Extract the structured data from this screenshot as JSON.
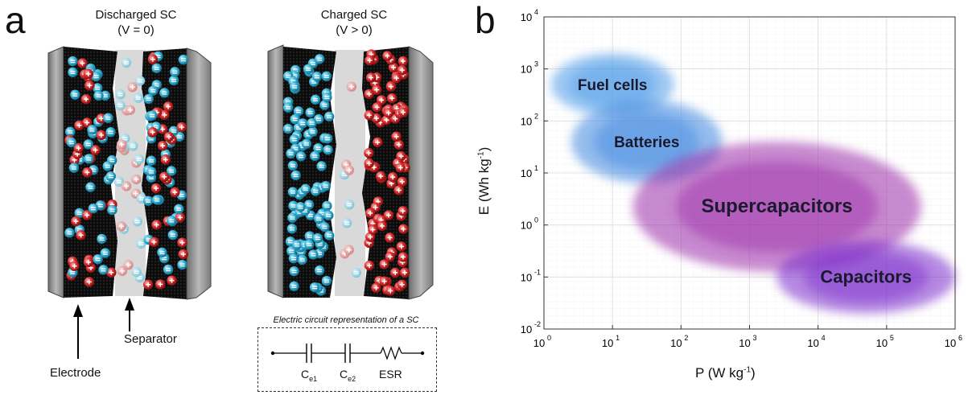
{
  "panel_a": {
    "letter": "a",
    "discharged": {
      "title_line1": "Discharged SC",
      "title_line2": "(V = 0)"
    },
    "charged": {
      "title_line1": "Charged SC",
      "title_line2": "(V > 0)"
    },
    "labels": {
      "separator": "Separator",
      "electrode": "Electrode"
    },
    "circuit": {
      "title": "Electric circuit representation of a SC",
      "components": [
        "Ce1",
        "Ce2",
        "ESR"
      ],
      "ce1": {
        "main": "C",
        "sub": "e1"
      },
      "ce2": {
        "main": "C",
        "sub": "e2"
      },
      "esr": "ESR"
    },
    "colors": {
      "anion": "#2aa6c8",
      "cation": "#d42a2a",
      "electrode": "#111111",
      "collector": "#9a9a9a",
      "separator": "#d9d9d9"
    }
  },
  "panel_b": {
    "letter": "b",
    "xlabel": {
      "main": "P (W kg",
      "sup": "-1",
      "end": ")"
    },
    "ylabel": {
      "main": "E (Wh kg",
      "sup": "-1",
      "end": ")"
    },
    "x_ticks": [
      {
        "base": "10",
        "exp": "0",
        "v": 0
      },
      {
        "base": "10",
        "exp": "1",
        "v": 1
      },
      {
        "base": "10",
        "exp": "2",
        "v": 2
      },
      {
        "base": "10",
        "exp": "3",
        "v": 3
      },
      {
        "base": "10",
        "exp": "4",
        "v": 4
      },
      {
        "base": "10",
        "exp": "5",
        "v": 5
      },
      {
        "base": "10",
        "exp": "6",
        "v": 6
      }
    ],
    "y_ticks": [
      {
        "base": "10",
        "exp": "4",
        "v": 4
      },
      {
        "base": "10",
        "exp": "3",
        "v": 3
      },
      {
        "base": "10",
        "exp": "2",
        "v": 2
      },
      {
        "base": "10",
        "exp": "1",
        "v": 1
      },
      {
        "base": "10",
        "exp": "0",
        "v": 0
      },
      {
        "base": "10",
        "exp": "-1",
        "v": -1
      },
      {
        "base": "10",
        "exp": "-2",
        "v": -2
      }
    ],
    "regions": [
      {
        "name": "Fuel cells",
        "logx": [
          0.1,
          1.9
        ],
        "logy": [
          2.1,
          3.3
        ],
        "color": "#4d9be8"
      },
      {
        "name": "Batteries",
        "logx": [
          0.4,
          2.6
        ],
        "logy": [
          0.8,
          2.4
        ],
        "color": "#3d86e0"
      },
      {
        "name": "Supercapacitors",
        "logx": [
          1.3,
          5.5
        ],
        "logy": [
          -0.9,
          1.6
        ],
        "color": "#9b2aa8"
      },
      {
        "name": "Capacitors",
        "logx": [
          3.4,
          6.0
        ],
        "logy": [
          -1.7,
          -0.3
        ],
        "color": "#7a2ccb"
      }
    ]
  },
  "chart_data": {
    "type": "scatter",
    "title": "",
    "xlabel": "P (W kg-1)",
    "ylabel": "E (Wh kg-1)",
    "xscale": "log",
    "yscale": "log",
    "xlim": [
      1,
      1000000
    ],
    "ylim": [
      0.01,
      10000
    ],
    "grid": true,
    "series": [
      {
        "name": "Fuel cells",
        "x_range": [
          1.3,
          80
        ],
        "y_range": [
          130,
          2000
        ]
      },
      {
        "name": "Batteries",
        "x_range": [
          2.5,
          400
        ],
        "y_range": [
          6,
          250
        ]
      },
      {
        "name": "Supercapacitors",
        "x_range": [
          20,
          300000
        ],
        "y_range": [
          0.13,
          40
        ]
      },
      {
        "name": "Capacitors",
        "x_range": [
          2500,
          1000000
        ],
        "y_range": [
          0.02,
          0.5
        ]
      }
    ]
  }
}
